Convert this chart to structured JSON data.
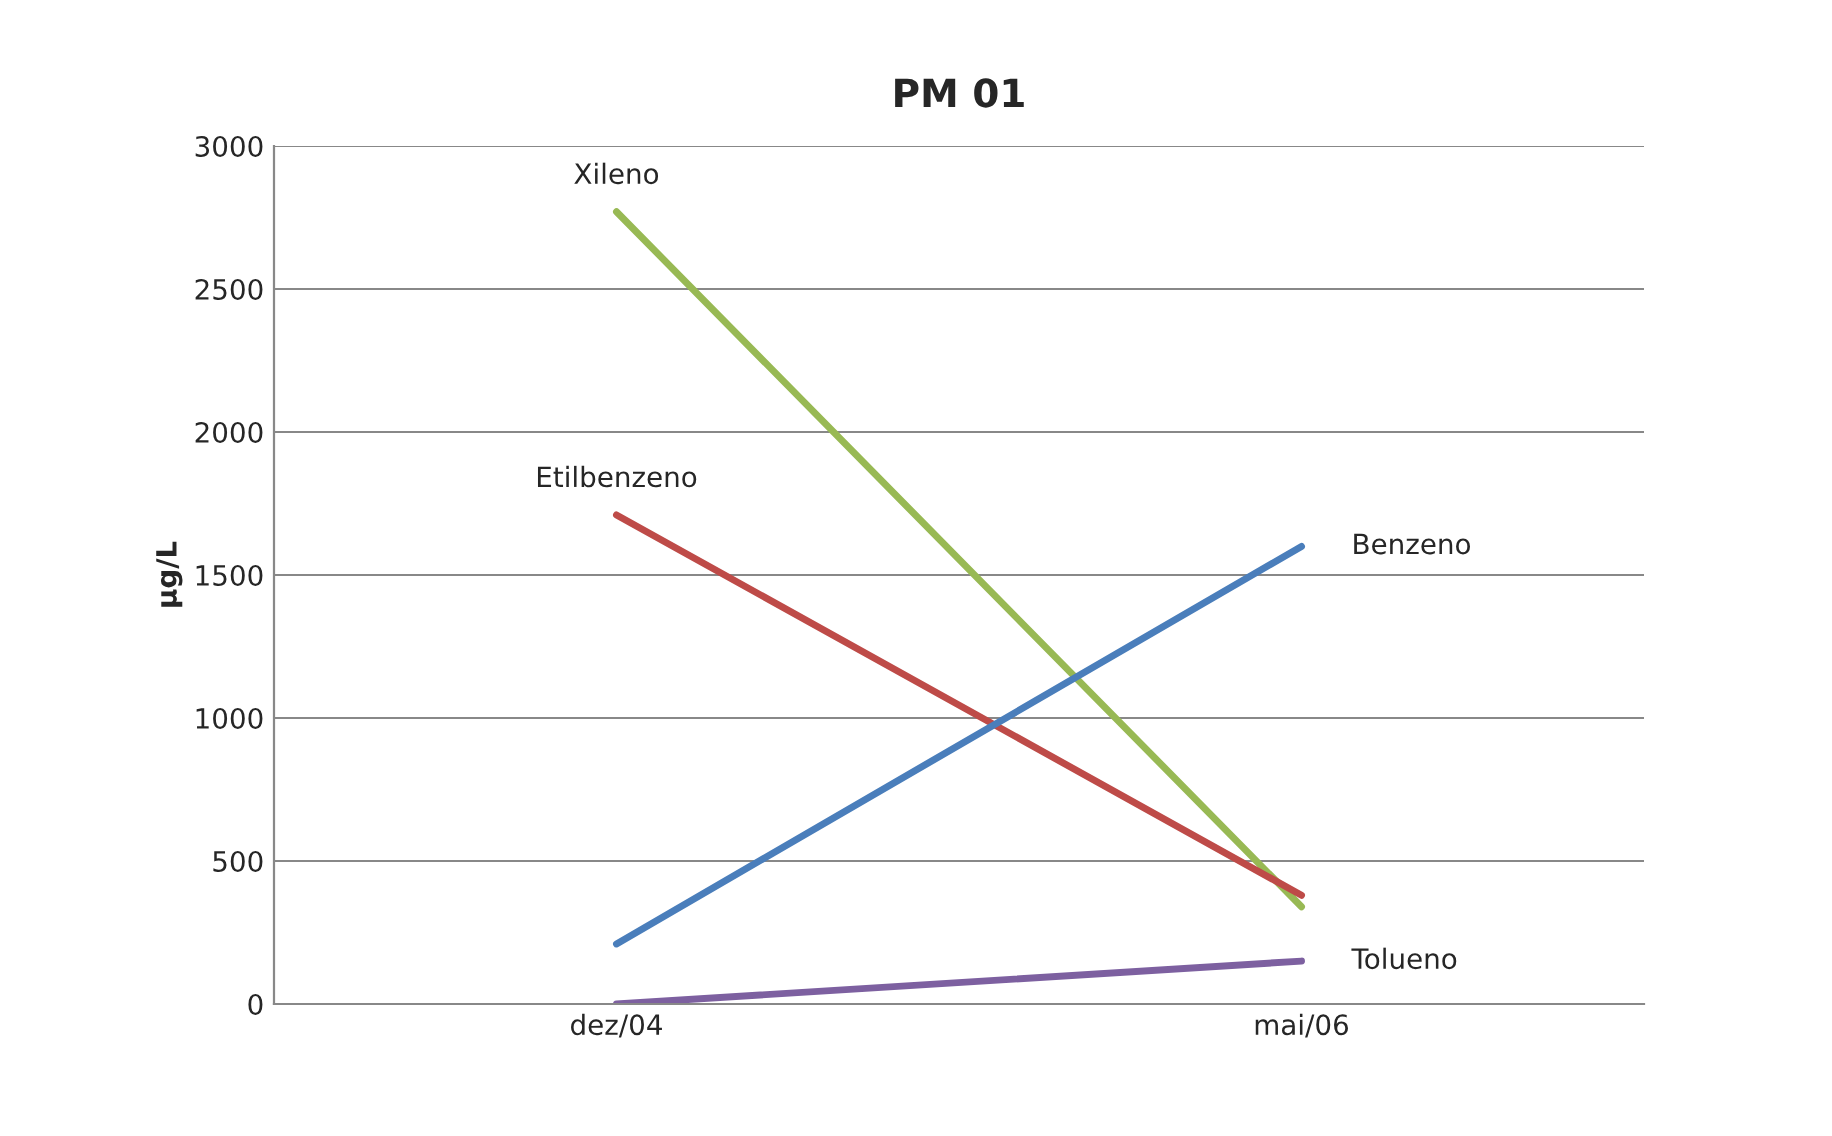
{
  "chart_data": {
    "type": "line",
    "title": "PM 01",
    "ylabel": "µg/L",
    "categories": [
      "dez/04",
      "mai/06"
    ],
    "series": [
      {
        "name": "Xileno",
        "color": "#98b954",
        "values": [
          2770,
          340
        ]
      },
      {
        "name": "Etilbenzeno",
        "color": "#be4b48",
        "values": [
          1710,
          380
        ]
      },
      {
        "name": "Benzeno",
        "color": "#4a7ebb",
        "values": [
          210,
          1600
        ]
      },
      {
        "name": "Tolueno",
        "color": "#7d60a0",
        "values": [
          0,
          150
        ]
      }
    ],
    "ylim": [
      0,
      3000
    ],
    "yticks": [
      0,
      500,
      1000,
      1500,
      2000,
      2500,
      3000
    ],
    "grid": "y",
    "legend": false,
    "marker": "none",
    "line_style": "solid"
  }
}
